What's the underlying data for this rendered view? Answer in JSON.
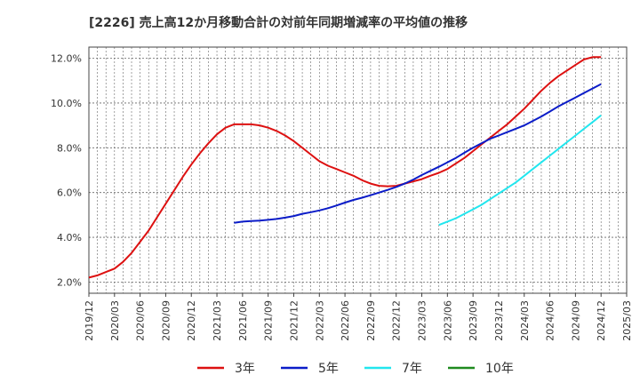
{
  "chart_data": {
    "type": "line",
    "title": "[2226]  売上高12か月移動合計の対前年同期増減率の平均値の推移",
    "xlabel": "",
    "ylabel": "",
    "ylim": [
      1.5,
      12.5
    ],
    "grid": true,
    "legend_position": "bottom",
    "x_ticks": [
      "2019/12",
      "2020/03",
      "2020/06",
      "2020/09",
      "2020/12",
      "2021/03",
      "2021/06",
      "2021/09",
      "2021/12",
      "2022/03",
      "2022/06",
      "2022/09",
      "2022/12",
      "2023/03",
      "2023/06",
      "2023/09",
      "2023/12",
      "2024/03",
      "2024/06",
      "2024/09",
      "2024/12",
      "2025/03"
    ],
    "y_ticks": [
      2.0,
      4.0,
      6.0,
      8.0,
      10.0,
      12.0
    ],
    "y_tick_labels": [
      "2.0%",
      "4.0%",
      "6.0%",
      "8.0%",
      "10.0%",
      "12.0%"
    ],
    "series": [
      {
        "name": "3年",
        "color": "#dd1111",
        "x": [
          "2019/12",
          "2020/01",
          "2020/02",
          "2020/03",
          "2020/04",
          "2020/05",
          "2020/06",
          "2020/07",
          "2020/08",
          "2020/09",
          "2020/10",
          "2020/11",
          "2020/12",
          "2021/01",
          "2021/02",
          "2021/03",
          "2021/04",
          "2021/05",
          "2021/06",
          "2021/07",
          "2021/08",
          "2021/09",
          "2021/10",
          "2021/11",
          "2021/12",
          "2022/01",
          "2022/02",
          "2022/03",
          "2022/04",
          "2022/05",
          "2022/06",
          "2022/07",
          "2022/08",
          "2022/09",
          "2022/10",
          "2022/11",
          "2022/12",
          "2023/01",
          "2023/02",
          "2023/03",
          "2023/04",
          "2023/05",
          "2023/06",
          "2023/07",
          "2023/08",
          "2023/09",
          "2023/10",
          "2023/11",
          "2023/12",
          "2024/01",
          "2024/02",
          "2024/03",
          "2024/04",
          "2024/05",
          "2024/06",
          "2024/07",
          "2024/08",
          "2024/09",
          "2024/10",
          "2024/11",
          "2024/12"
        ],
        "values": [
          2.2,
          2.3,
          2.45,
          2.6,
          2.9,
          3.3,
          3.8,
          4.3,
          4.9,
          5.5,
          6.1,
          6.7,
          7.25,
          7.75,
          8.2,
          8.6,
          8.9,
          9.05,
          9.05,
          9.05,
          9.0,
          8.9,
          8.75,
          8.55,
          8.3,
          8.0,
          7.7,
          7.4,
          7.2,
          7.05,
          6.9,
          6.75,
          6.55,
          6.4,
          6.3,
          6.28,
          6.3,
          6.4,
          6.5,
          6.6,
          6.75,
          6.88,
          7.05,
          7.3,
          7.55,
          7.85,
          8.15,
          8.45,
          8.75,
          9.05,
          9.4,
          9.75,
          10.15,
          10.55,
          10.9,
          11.2,
          11.45,
          11.7,
          11.95,
          12.05,
          12.05
        ]
      },
      {
        "name": "5年",
        "color": "#0b1cc8",
        "x": [
          "2021/05",
          "2021/06",
          "2021/07",
          "2021/08",
          "2021/09",
          "2021/10",
          "2021/11",
          "2021/12",
          "2022/01",
          "2022/02",
          "2022/03",
          "2022/04",
          "2022/05",
          "2022/06",
          "2022/07",
          "2022/08",
          "2022/09",
          "2022/10",
          "2022/11",
          "2022/12",
          "2023/01",
          "2023/02",
          "2023/03",
          "2023/04",
          "2023/05",
          "2023/06",
          "2023/07",
          "2023/08",
          "2023/09",
          "2023/10",
          "2023/11",
          "2023/12",
          "2024/01",
          "2024/02",
          "2024/03",
          "2024/04",
          "2024/05",
          "2024/06",
          "2024/07",
          "2024/08",
          "2024/09",
          "2024/10",
          "2024/11",
          "2024/12"
        ],
        "values": [
          4.65,
          4.7,
          4.73,
          4.75,
          4.78,
          4.82,
          4.88,
          4.95,
          5.05,
          5.12,
          5.2,
          5.3,
          5.42,
          5.55,
          5.67,
          5.77,
          5.88,
          6.0,
          6.12,
          6.25,
          6.4,
          6.58,
          6.78,
          6.97,
          7.15,
          7.35,
          7.55,
          7.78,
          8.0,
          8.2,
          8.4,
          8.55,
          8.7,
          8.85,
          9.0,
          9.2,
          9.4,
          9.62,
          9.85,
          10.05,
          10.25,
          10.45,
          10.65,
          10.85
        ]
      },
      {
        "name": "7年",
        "color": "#22e6ee",
        "x": [
          "2023/05",
          "2023/06",
          "2023/07",
          "2023/08",
          "2023/09",
          "2023/10",
          "2023/11",
          "2023/12",
          "2024/01",
          "2024/02",
          "2024/03",
          "2024/04",
          "2024/05",
          "2024/06",
          "2024/07",
          "2024/08",
          "2024/09",
          "2024/10",
          "2024/11",
          "2024/12"
        ],
        "values": [
          4.55,
          4.7,
          4.85,
          5.05,
          5.25,
          5.45,
          5.7,
          5.95,
          6.2,
          6.45,
          6.75,
          7.05,
          7.35,
          7.65,
          7.95,
          8.25,
          8.55,
          8.85,
          9.15,
          9.45
        ]
      },
      {
        "name": "10年",
        "color": "#1f8a1f",
        "x": [],
        "values": []
      }
    ]
  }
}
